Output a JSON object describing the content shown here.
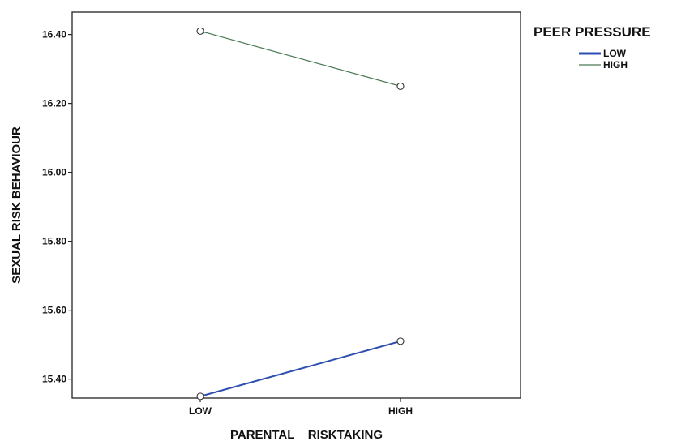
{
  "chart_data": {
    "type": "line",
    "xlabel": "PARENTAL    RISKTAKING",
    "ylabel": "SEXUAL RISK BEHAVIOUR",
    "categories": [
      "LOW",
      "HIGH"
    ],
    "ylim": [
      15.345,
      16.465
    ],
    "yticks": [
      15.4,
      15.6,
      15.8,
      16.0,
      16.2,
      16.4
    ],
    "ytick_labels": [
      "15.40",
      "15.60",
      "15.80",
      "16.00",
      "16.20",
      "16.40"
    ],
    "grid": false,
    "legend": {
      "title": "PEER PRESSURE",
      "placement": "top-right"
    },
    "series": [
      {
        "name": "LOW",
        "values": [
          15.35,
          15.51
        ],
        "color": "#2f4fb0"
      },
      {
        "name": "HIGH",
        "values": [
          16.41,
          16.25
        ],
        "color": "#4a7a55"
      }
    ]
  }
}
